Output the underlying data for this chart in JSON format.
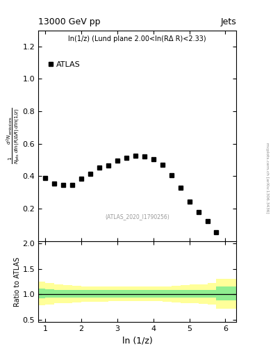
{
  "title_left": "13000 GeV pp",
  "title_right": "Jets",
  "annotation": "ln(1/z) (Lund plane 2.00<ln(RΔ R)<2.33)",
  "source_label": "(ATLAS_2020_I1790256)",
  "legend_label": "ATLAS",
  "ylabel_ratio": "Ratio to ATLAS",
  "xlabel": "ln (1/z)",
  "xlim": [
    0.8,
    6.3
  ],
  "ylim_main": [
    0.0,
    1.3
  ],
  "ylim_ratio": [
    0.45,
    2.05
  ],
  "yticks_main": [
    0.2,
    0.4,
    0.6,
    0.8,
    1.0,
    1.2
  ],
  "yticks_ratio": [
    0.5,
    1.0,
    1.5,
    2.0
  ],
  "xticks": [
    1,
    2,
    3,
    4,
    5,
    6
  ],
  "data_x": [
    1.0,
    1.25,
    1.5,
    1.75,
    2.0,
    2.25,
    2.5,
    2.75,
    3.0,
    3.25,
    3.5,
    3.75,
    4.0,
    4.25,
    4.5,
    4.75,
    5.0,
    5.25,
    5.5,
    5.75
  ],
  "data_y": [
    0.39,
    0.355,
    0.345,
    0.345,
    0.385,
    0.415,
    0.455,
    0.465,
    0.495,
    0.515,
    0.525,
    0.52,
    0.505,
    0.47,
    0.405,
    0.33,
    0.245,
    0.18,
    0.125,
    0.055
  ],
  "ratio_x_edges": [
    0.8,
    1.0,
    1.25,
    1.5,
    1.75,
    2.0,
    2.25,
    2.5,
    2.75,
    3.0,
    3.25,
    3.5,
    3.75,
    4.0,
    4.25,
    4.5,
    4.75,
    5.0,
    5.25,
    5.5,
    5.75,
    6.3
  ],
  "ratio_green_upper": [
    1.12,
    1.1,
    1.09,
    1.09,
    1.09,
    1.09,
    1.09,
    1.09,
    1.09,
    1.08,
    1.08,
    1.08,
    1.09,
    1.08,
    1.09,
    1.09,
    1.09,
    1.09,
    1.09,
    1.09,
    1.15
  ],
  "ratio_green_lower": [
    0.92,
    0.93,
    0.93,
    0.93,
    0.93,
    0.93,
    0.93,
    0.93,
    0.93,
    0.93,
    0.93,
    0.93,
    0.93,
    0.93,
    0.93,
    0.93,
    0.93,
    0.93,
    0.93,
    0.93,
    0.88
  ],
  "ratio_yellow_upper": [
    1.25,
    1.22,
    1.2,
    1.18,
    1.17,
    1.16,
    1.16,
    1.16,
    1.15,
    1.15,
    1.15,
    1.15,
    1.15,
    1.15,
    1.16,
    1.17,
    1.18,
    1.19,
    1.2,
    1.22,
    1.3
  ],
  "ratio_yellow_lower": [
    0.78,
    0.8,
    0.82,
    0.83,
    0.84,
    0.85,
    0.85,
    0.85,
    0.86,
    0.86,
    0.86,
    0.86,
    0.86,
    0.86,
    0.85,
    0.84,
    0.83,
    0.82,
    0.81,
    0.8,
    0.72
  ],
  "color_green": "#90EE90",
  "color_yellow": "#FFFF99",
  "marker_color": "black",
  "marker_style": "s",
  "marker_size": 4,
  "background_color": "white",
  "watermark": "mcplots.cern.ch [arXiv:1306.3436]"
}
